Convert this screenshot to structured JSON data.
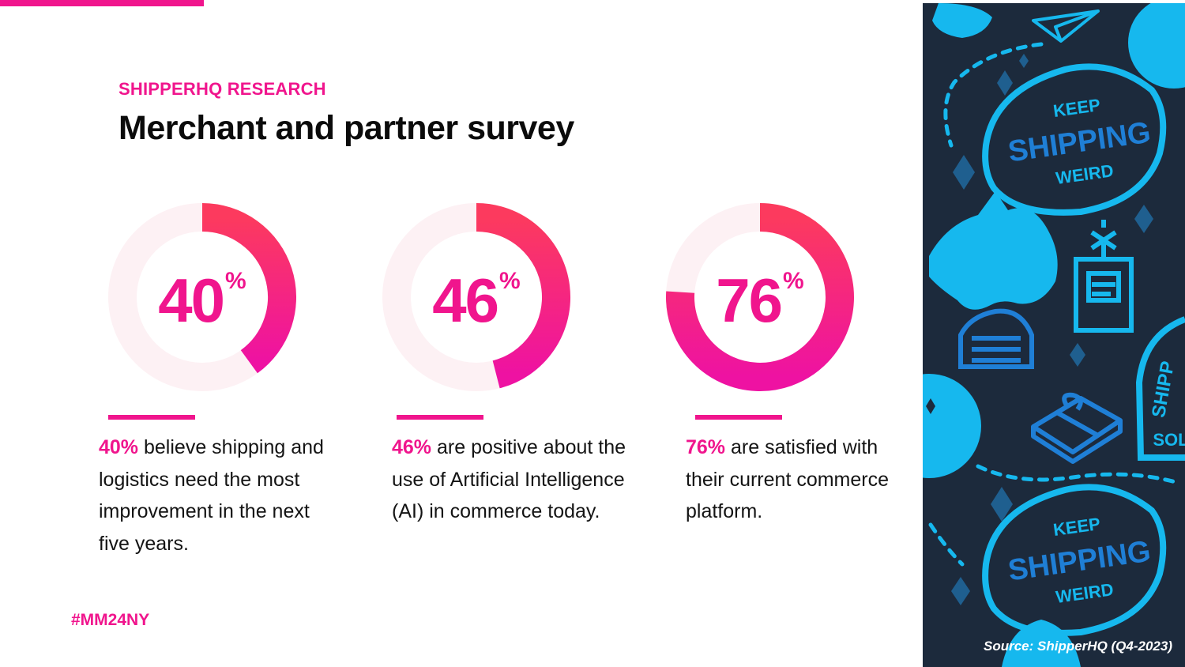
{
  "header": {
    "eyebrow": "SHIPPERHQ RESEARCH",
    "title": "Merchant and partner survey"
  },
  "stats": [
    {
      "value": 40,
      "display": "40",
      "suffix": "%",
      "highlight": "40%",
      "text": " believe shipping and logistics need the most improvement in the next five years."
    },
    {
      "value": 46,
      "display": "46",
      "suffix": "%",
      "highlight": "46%",
      "text": " are positive about the use of Artificial Intelligence (AI) in commerce today."
    },
    {
      "value": 76,
      "display": "76",
      "suffix": "%",
      "highlight": "76%",
      "text": " are satisfied with their current commerce platform."
    }
  ],
  "footer": {
    "hashtag": "#MM24NY",
    "source": "Source: ShipperHQ (Q4-2023)"
  },
  "side_panel": {
    "badge_top": {
      "line1": "KEEP",
      "line2": "SHIPPING",
      "line3": "WEIRD"
    },
    "badge_bottom": {
      "line1": "KEEP",
      "line2": "SHIPPING",
      "line3": "WEIRD"
    },
    "badge_side": {
      "line1": "SHIPP",
      "line2": "SOL"
    }
  },
  "colors": {
    "accent": "#f0158d",
    "ring_track": "#fdf1f4",
    "panel_bg": "#1c2a3c",
    "panel_blue": "#16b8ee",
    "panel_blue_dark": "#1f7fd6"
  }
}
